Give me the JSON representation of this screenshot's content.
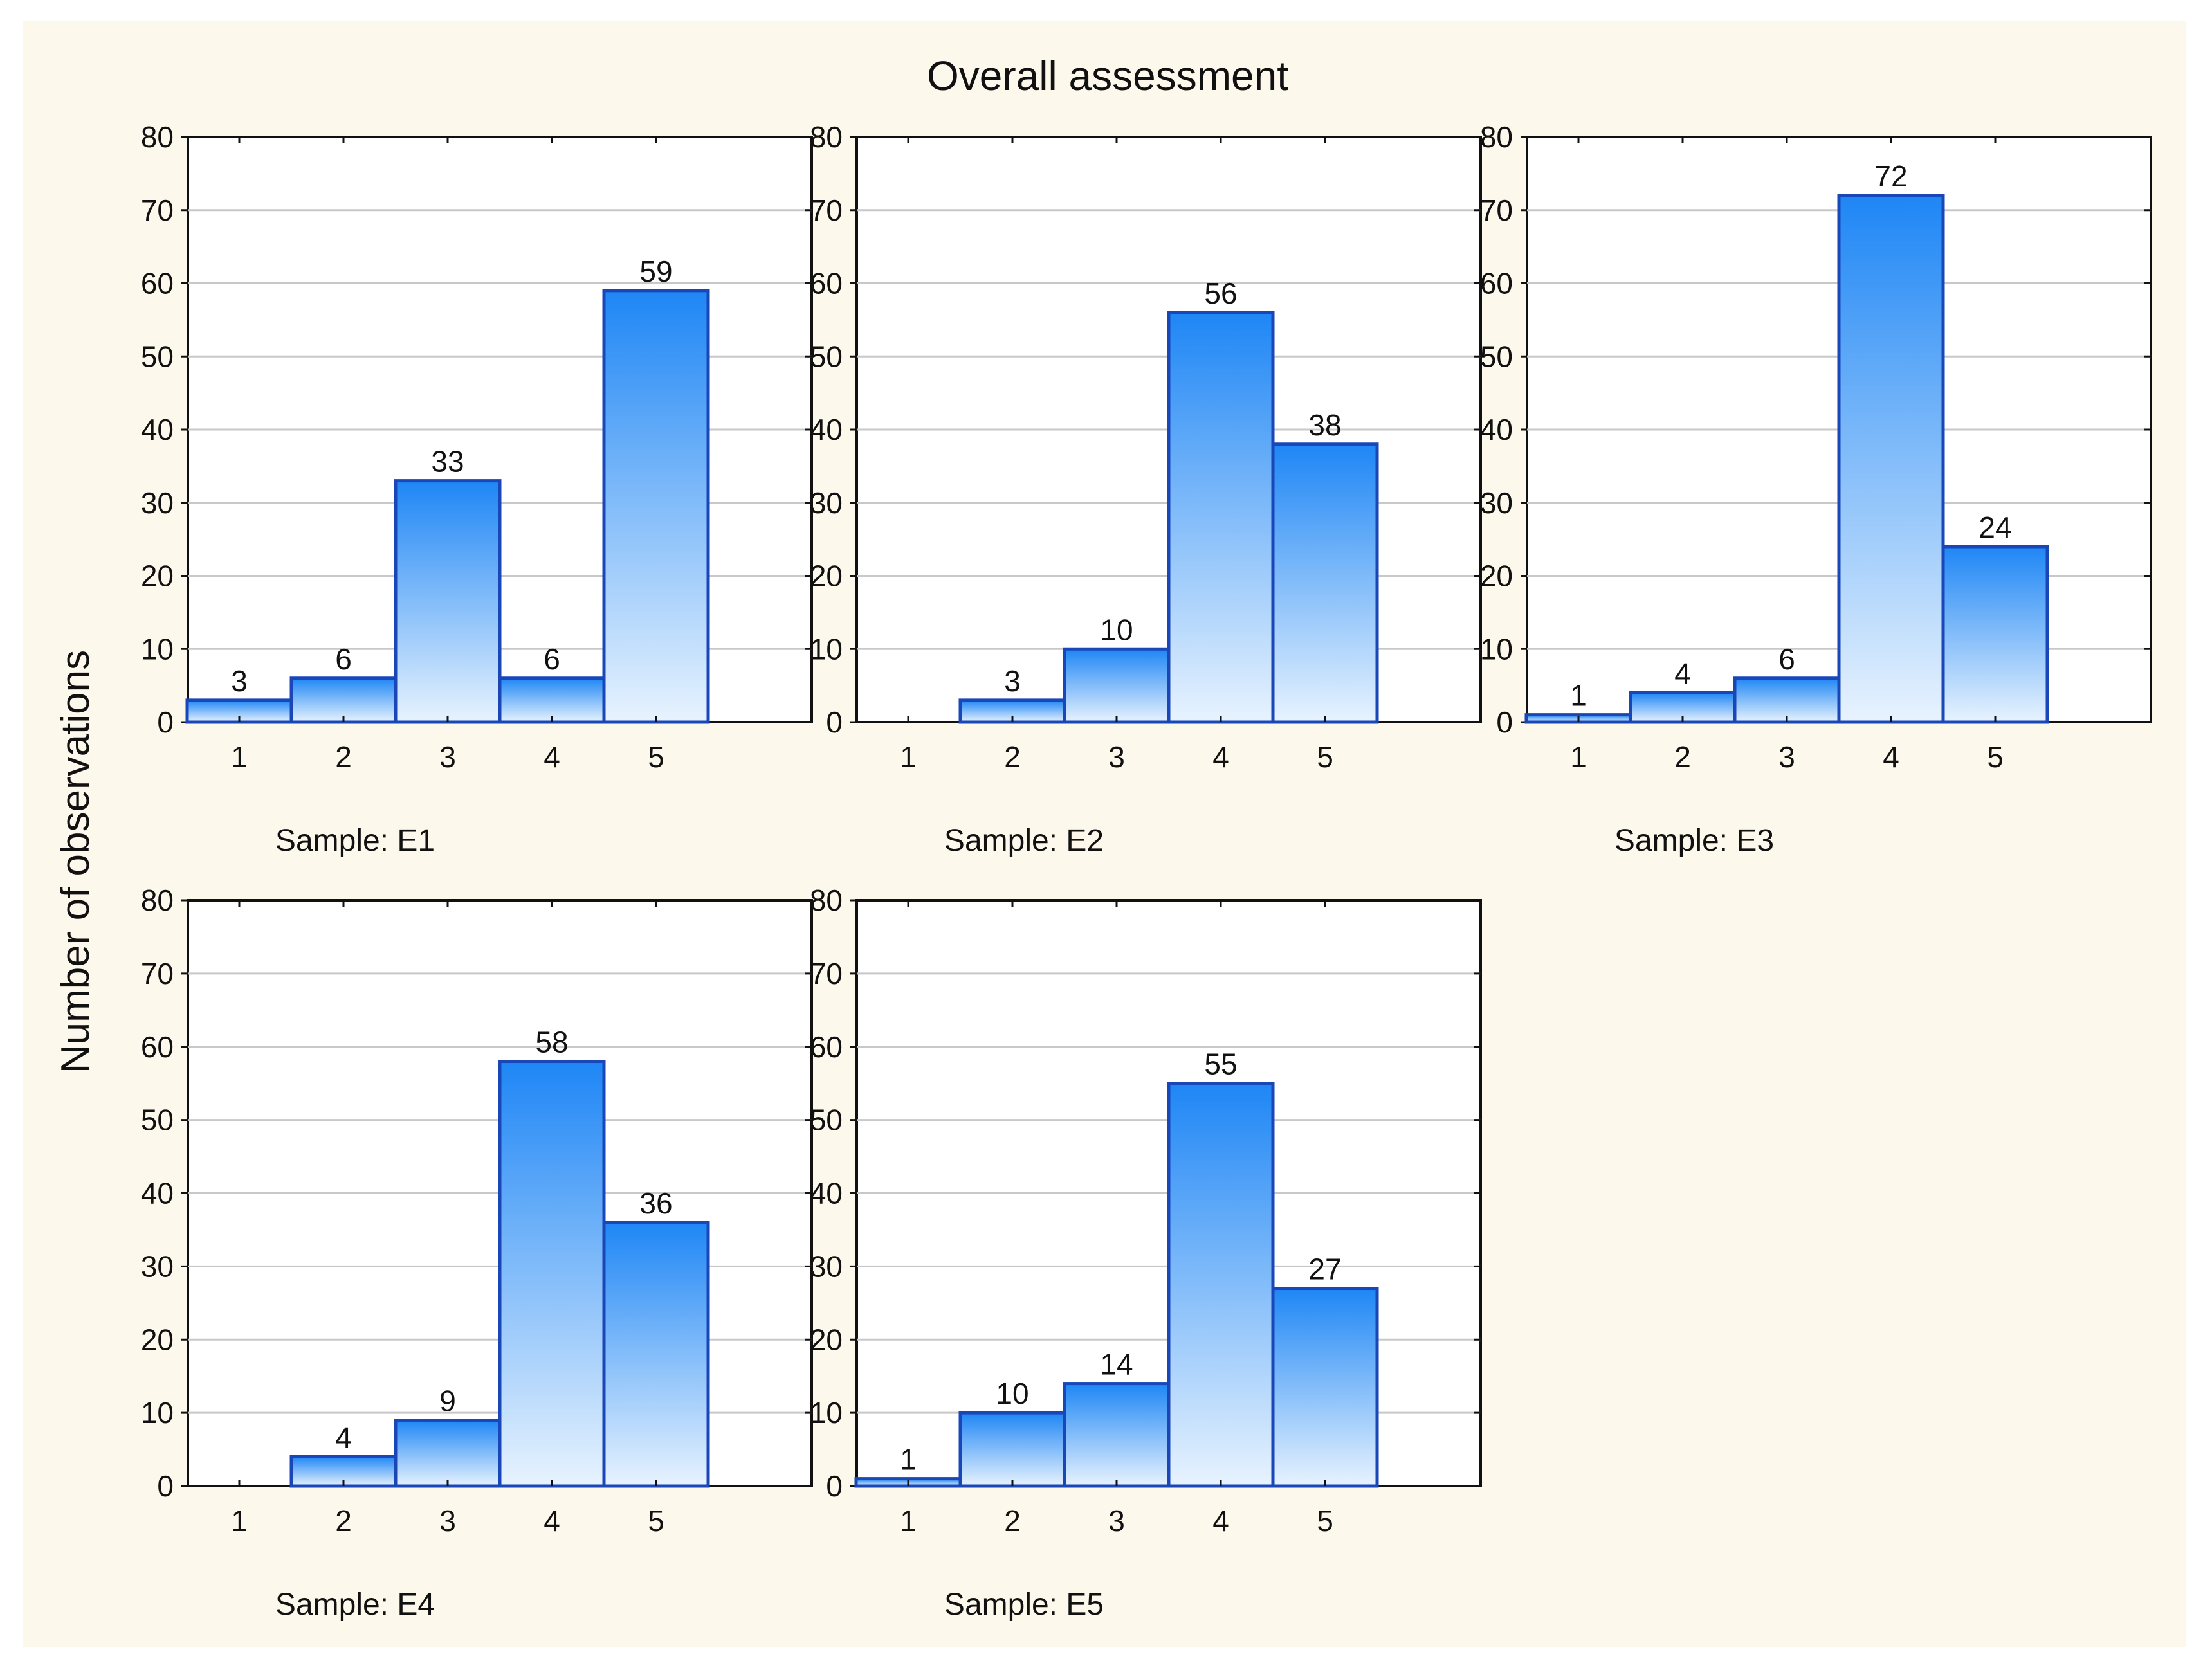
{
  "chart_data": {
    "type": "bar",
    "title": "Overall assessment",
    "ylabel": "Number of observations",
    "ylim": [
      0,
      80
    ],
    "yticks": [
      0,
      10,
      20,
      30,
      40,
      50,
      60,
      70,
      80
    ],
    "categories": [
      "1",
      "2",
      "3",
      "4",
      "5"
    ],
    "grid": true,
    "colors": {
      "bar_top": "#1e86f5",
      "bar_bottom": "#e8f3fe",
      "bar_edge": "#1a47b8",
      "background": "#fdf8ec"
    },
    "panels": [
      {
        "label": "Sample: E1",
        "values": [
          3,
          6,
          33,
          6,
          59
        ]
      },
      {
        "label": "Sample: E2",
        "values": [
          0,
          3,
          10,
          56,
          38
        ]
      },
      {
        "label": "Sample: E3",
        "values": [
          1,
          4,
          6,
          72,
          24
        ]
      },
      {
        "label": "Sample: E4",
        "values": [
          0,
          4,
          9,
          58,
          36
        ]
      },
      {
        "label": "Sample: E5",
        "values": [
          1,
          10,
          14,
          55,
          27
        ]
      }
    ]
  }
}
